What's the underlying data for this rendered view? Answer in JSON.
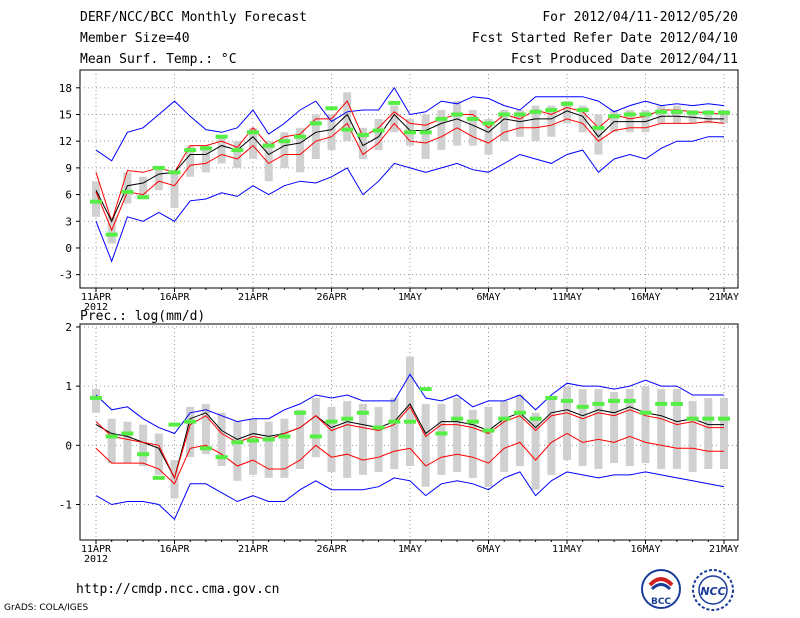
{
  "header": {
    "title": "DERF/NCC/BCC Monthly Forecast",
    "member_size": "Member Size=40",
    "variable": "Mean Surf. Temp.: °C",
    "period": "For 2012/04/11-2012/05/20",
    "fcst_started": "Fcst Started Refer Date 2012/04/10",
    "fcst_produced": "Fcst Produced Date 2012/04/11"
  },
  "footer": {
    "url": "http://cmdp.ncc.cma.gov.cn",
    "grads": "GrADS: COLA/IGES",
    "logo_bcc": "BCC",
    "logo_ncc": "NCC"
  },
  "colors": {
    "max_min": "#0000ff",
    "mean": "#000000",
    "member_line": "#ff0000",
    "box": "#d0d0d0",
    "obs": "#55ee44",
    "grid": "#999999"
  },
  "chart_data": [
    {
      "type": "line",
      "title": "Mean Surf. Temp.: °C",
      "x_tick_labels": [
        "11APR",
        "16APR",
        "21APR",
        "26APR",
        "1MAY",
        "6MAY",
        "11MAY",
        "16MAY",
        "21MAY"
      ],
      "x_year_label": "2012",
      "x_days": 41,
      "xlim": [
        0,
        40
      ],
      "ylim": [
        -4.5,
        20
      ],
      "yticks": [
        -3,
        0,
        3,
        6,
        9,
        12,
        15,
        18
      ],
      "grid": true,
      "series": [
        {
          "name": "max",
          "color": "#0000ff",
          "values": [
            11,
            9.8,
            13,
            13.5,
            15,
            16.5,
            14.8,
            13.3,
            13,
            13.5,
            15.5,
            12.8,
            14,
            15.5,
            16.5,
            14.2,
            15.3,
            15.5,
            15.5,
            18,
            15,
            15.3,
            16.5,
            16.2,
            17,
            16.8,
            16,
            15.5,
            17,
            17,
            17,
            17,
            16.5,
            15.3,
            16,
            16.5,
            16,
            16.2,
            16,
            16.2,
            16
          ]
        },
        {
          "name": "upper",
          "color": "#ff0000",
          "values": [
            8.5,
            3,
            8.7,
            8.5,
            9,
            8.5,
            11.5,
            11.5,
            12,
            11.3,
            13.5,
            11.5,
            12.5,
            12.8,
            14.5,
            14.5,
            16.5,
            12.5,
            13.5,
            15.3,
            14,
            13.8,
            14.5,
            15,
            15,
            13.5,
            15,
            14.5,
            15.5,
            15,
            15.8,
            15.3,
            13.5,
            15,
            14.5,
            14.8,
            15.5,
            15.5,
            15.3,
            15.2,
            15
          ]
        },
        {
          "name": "mean",
          "color": "#000000",
          "values": [
            6.5,
            3,
            7,
            7.3,
            8.3,
            8.5,
            10.5,
            10.5,
            11.5,
            11,
            12.5,
            10.5,
            11.5,
            11.8,
            13,
            13.3,
            15,
            11.5,
            12.5,
            15,
            13.2,
            13.2,
            14,
            14.5,
            13.8,
            13,
            14.5,
            14.2,
            14.5,
            14.5,
            15.4,
            14.8,
            12.5,
            14.2,
            14.2,
            14.2,
            14.8,
            14.8,
            14.7,
            14.5,
            14.5
          ]
        },
        {
          "name": "lower",
          "color": "#ff0000",
          "values": [
            6.3,
            2,
            6.3,
            6,
            7.5,
            7,
            9.3,
            9.5,
            10.5,
            10,
            11.5,
            9.5,
            10.5,
            10.5,
            12,
            12.5,
            14,
            10.5,
            11.8,
            14,
            12,
            11.8,
            12.5,
            13.5,
            12.5,
            11.8,
            13,
            13.5,
            13.5,
            13.8,
            14.5,
            14,
            12,
            13.2,
            13.5,
            13.5,
            14,
            14,
            14,
            14.2,
            14
          ]
        },
        {
          "name": "min",
          "color": "#0000ff",
          "values": [
            3,
            -1.5,
            3.5,
            3,
            4,
            3,
            5.3,
            5.5,
            6.2,
            5.8,
            7,
            6,
            7,
            7.5,
            7.3,
            8,
            9,
            6,
            7.5,
            9.5,
            9,
            8.5,
            9,
            9.5,
            8.8,
            8.5,
            9.5,
            10.5,
            10,
            9.5,
            10.5,
            11,
            8.5,
            10,
            10.5,
            10,
            11.2,
            12,
            12,
            12.5,
            12.5
          ]
        }
      ],
      "box_low": [
        3.5,
        0.5,
        5,
        5.5,
        6.5,
        4.5,
        8,
        8.5,
        9.5,
        9,
        10,
        7.5,
        9,
        8.5,
        10,
        11,
        12,
        10,
        11,
        13,
        11.5,
        10,
        11,
        11.5,
        11.5,
        10.5,
        12,
        12.5,
        12,
        12.5,
        14,
        13,
        10.5,
        13,
        13,
        13,
        14,
        14,
        14,
        14,
        14
      ],
      "box_high": [
        7.5,
        3.5,
        8.5,
        8,
        9,
        8.5,
        11.5,
        11.5,
        12.5,
        12,
        13.5,
        12,
        13,
        13.5,
        15,
        15,
        17.5,
        13.5,
        14.5,
        16,
        14.5,
        15,
        15.5,
        16.5,
        15.5,
        14.5,
        15.5,
        15.5,
        16,
        16,
        16.5,
        16,
        15,
        15.5,
        15.5,
        15.5,
        16,
        16,
        15.5,
        15.5,
        15.5
      ],
      "obs": [
        5.2,
        1.5,
        6.3,
        5.7,
        9,
        8.5,
        11,
        11.2,
        12.5,
        11,
        13,
        11.5,
        12,
        12.5,
        14,
        15.7,
        13.3,
        12.7,
        13.2,
        16.3,
        13,
        13,
        14.5,
        15,
        14.5,
        14,
        15,
        15,
        15.3,
        15.5,
        16.2,
        15.5,
        13.5,
        14.8,
        15,
        15,
        15.3,
        15.3,
        15.2,
        15.2,
        15.2
      ]
    },
    {
      "type": "line",
      "title": "Prec.: log(mm/d)",
      "x_tick_labels": [
        "11APR",
        "16APR",
        "21APR",
        "26APR",
        "1MAY",
        "6MAY",
        "11MAY",
        "16MAY",
        "21MAY"
      ],
      "x_year_label": "2012",
      "x_days": 41,
      "xlim": [
        0,
        40
      ],
      "ylim": [
        -1.6,
        2.05
      ],
      "yticks": [
        -1,
        0,
        1,
        2
      ],
      "grid": true,
      "series": [
        {
          "name": "max",
          "color": "#0000ff",
          "values": [
            0.85,
            0.6,
            0.65,
            0.45,
            0.3,
            0.2,
            0.55,
            0.6,
            0.5,
            0.4,
            0.45,
            0.45,
            0.6,
            0.7,
            0.85,
            0.8,
            0.85,
            0.75,
            0.75,
            0.75,
            1.2,
            0.8,
            0.75,
            0.85,
            0.65,
            0.75,
            0.75,
            0.85,
            0.6,
            0.85,
            1.05,
            1.0,
            1.0,
            0.95,
            1.0,
            1.1,
            1.0,
            1.0,
            0.85,
            0.85,
            0.85
          ]
        },
        {
          "name": "mean",
          "color": "#000000",
          "values": [
            0.35,
            0.2,
            0.15,
            0.05,
            -0.05,
            -0.55,
            0.45,
            0.55,
            0.25,
            0.1,
            0.2,
            0.15,
            0.2,
            0.3,
            0.5,
            0.3,
            0.4,
            0.35,
            0.3,
            0.4,
            0.7,
            0.2,
            0.4,
            0.4,
            0.35,
            0.25,
            0.45,
            0.55,
            0.3,
            0.55,
            0.6,
            0.5,
            0.6,
            0.55,
            0.65,
            0.55,
            0.5,
            0.4,
            0.45,
            0.35,
            0.35
          ]
        },
        {
          "name": "member",
          "color": "#ff0000",
          "values": [
            0.4,
            0.15,
            0.1,
            0.05,
            0.0,
            -0.55,
            0.35,
            0.5,
            0.2,
            0.05,
            0.15,
            0.1,
            0.2,
            0.3,
            0.5,
            0.25,
            0.35,
            0.3,
            0.25,
            0.35,
            0.65,
            0.15,
            0.35,
            0.35,
            0.3,
            0.2,
            0.4,
            0.5,
            0.25,
            0.5,
            0.55,
            0.45,
            0.55,
            0.5,
            0.6,
            0.5,
            0.45,
            0.35,
            0.4,
            0.3,
            0.3
          ]
        },
        {
          "name": "lower",
          "color": "#ff0000",
          "values": [
            -0.05,
            -0.3,
            -0.3,
            -0.3,
            -0.4,
            -0.65,
            -0.05,
            0.0,
            -0.15,
            -0.35,
            -0.25,
            -0.4,
            -0.4,
            -0.25,
            0.0,
            -0.2,
            -0.15,
            -0.25,
            -0.2,
            -0.1,
            -0.05,
            -0.35,
            -0.2,
            -0.15,
            -0.2,
            -0.3,
            -0.05,
            0.05,
            -0.25,
            0.05,
            0.2,
            0.05,
            0.1,
            0.05,
            0.15,
            0.05,
            0.0,
            -0.05,
            -0.05,
            -0.1,
            -0.1
          ]
        },
        {
          "name": "min",
          "color": "#0000ff",
          "values": [
            -0.85,
            -1.0,
            -0.95,
            -0.95,
            -1.0,
            -1.25,
            -0.65,
            -0.65,
            -0.8,
            -0.95,
            -0.85,
            -0.95,
            -0.95,
            -0.75,
            -0.6,
            -0.75,
            -0.75,
            -0.75,
            -0.7,
            -0.55,
            -0.6,
            -0.85,
            -0.65,
            -0.6,
            -0.65,
            -0.75,
            -0.55,
            -0.45,
            -0.85,
            -0.6,
            -0.45,
            -0.5,
            -0.55,
            -0.5,
            -0.5,
            -0.45,
            -0.5,
            -0.55,
            -0.6,
            -0.65,
            -0.7
          ]
        },
        {
          "name": "upper",
          "color": "#0000ff",
          "values": []
        }
      ],
      "box_low": [
        0.55,
        -0.3,
        -0.3,
        -0.35,
        -0.5,
        -0.9,
        -0.2,
        -0.15,
        -0.35,
        -0.6,
        -0.5,
        -0.55,
        -0.55,
        -0.4,
        -0.2,
        -0.45,
        -0.55,
        -0.5,
        -0.45,
        -0.4,
        -0.35,
        -0.7,
        -0.5,
        -0.45,
        -0.55,
        -0.7,
        -0.45,
        -0.35,
        -0.75,
        -0.5,
        -0.25,
        -0.35,
        -0.4,
        -0.3,
        -0.35,
        -0.3,
        -0.4,
        -0.4,
        -0.45,
        -0.4,
        -0.4
      ],
      "box_high": [
        0.95,
        0.45,
        0.4,
        0.35,
        0.2,
        -0.25,
        0.65,
        0.7,
        0.55,
        0.4,
        0.45,
        0.4,
        0.45,
        0.6,
        0.8,
        0.65,
        0.75,
        0.7,
        0.65,
        0.8,
        1.5,
        0.7,
        0.7,
        0.8,
        0.6,
        0.65,
        0.75,
        0.85,
        0.55,
        0.8,
        1.0,
        0.95,
        0.95,
        0.9,
        0.95,
        1.0,
        0.95,
        0.95,
        0.75,
        0.8,
        0.8
      ],
      "obs": [
        0.8,
        0.15,
        0.2,
        -0.15,
        -0.55,
        0.35,
        0.4,
        -0.05,
        -0.2,
        0.05,
        0.08,
        0.1,
        0.15,
        0.55,
        0.15,
        0.4,
        0.45,
        0.55,
        0.3,
        0.4,
        0.4,
        0.95,
        0.2,
        0.45,
        0.4,
        0.25,
        0.45,
        0.55,
        0.45,
        0.8,
        0.75,
        0.65,
        0.7,
        0.75,
        0.75,
        0.55,
        0.7,
        0.7,
        0.45,
        0.45,
        0.45
      ]
    }
  ]
}
